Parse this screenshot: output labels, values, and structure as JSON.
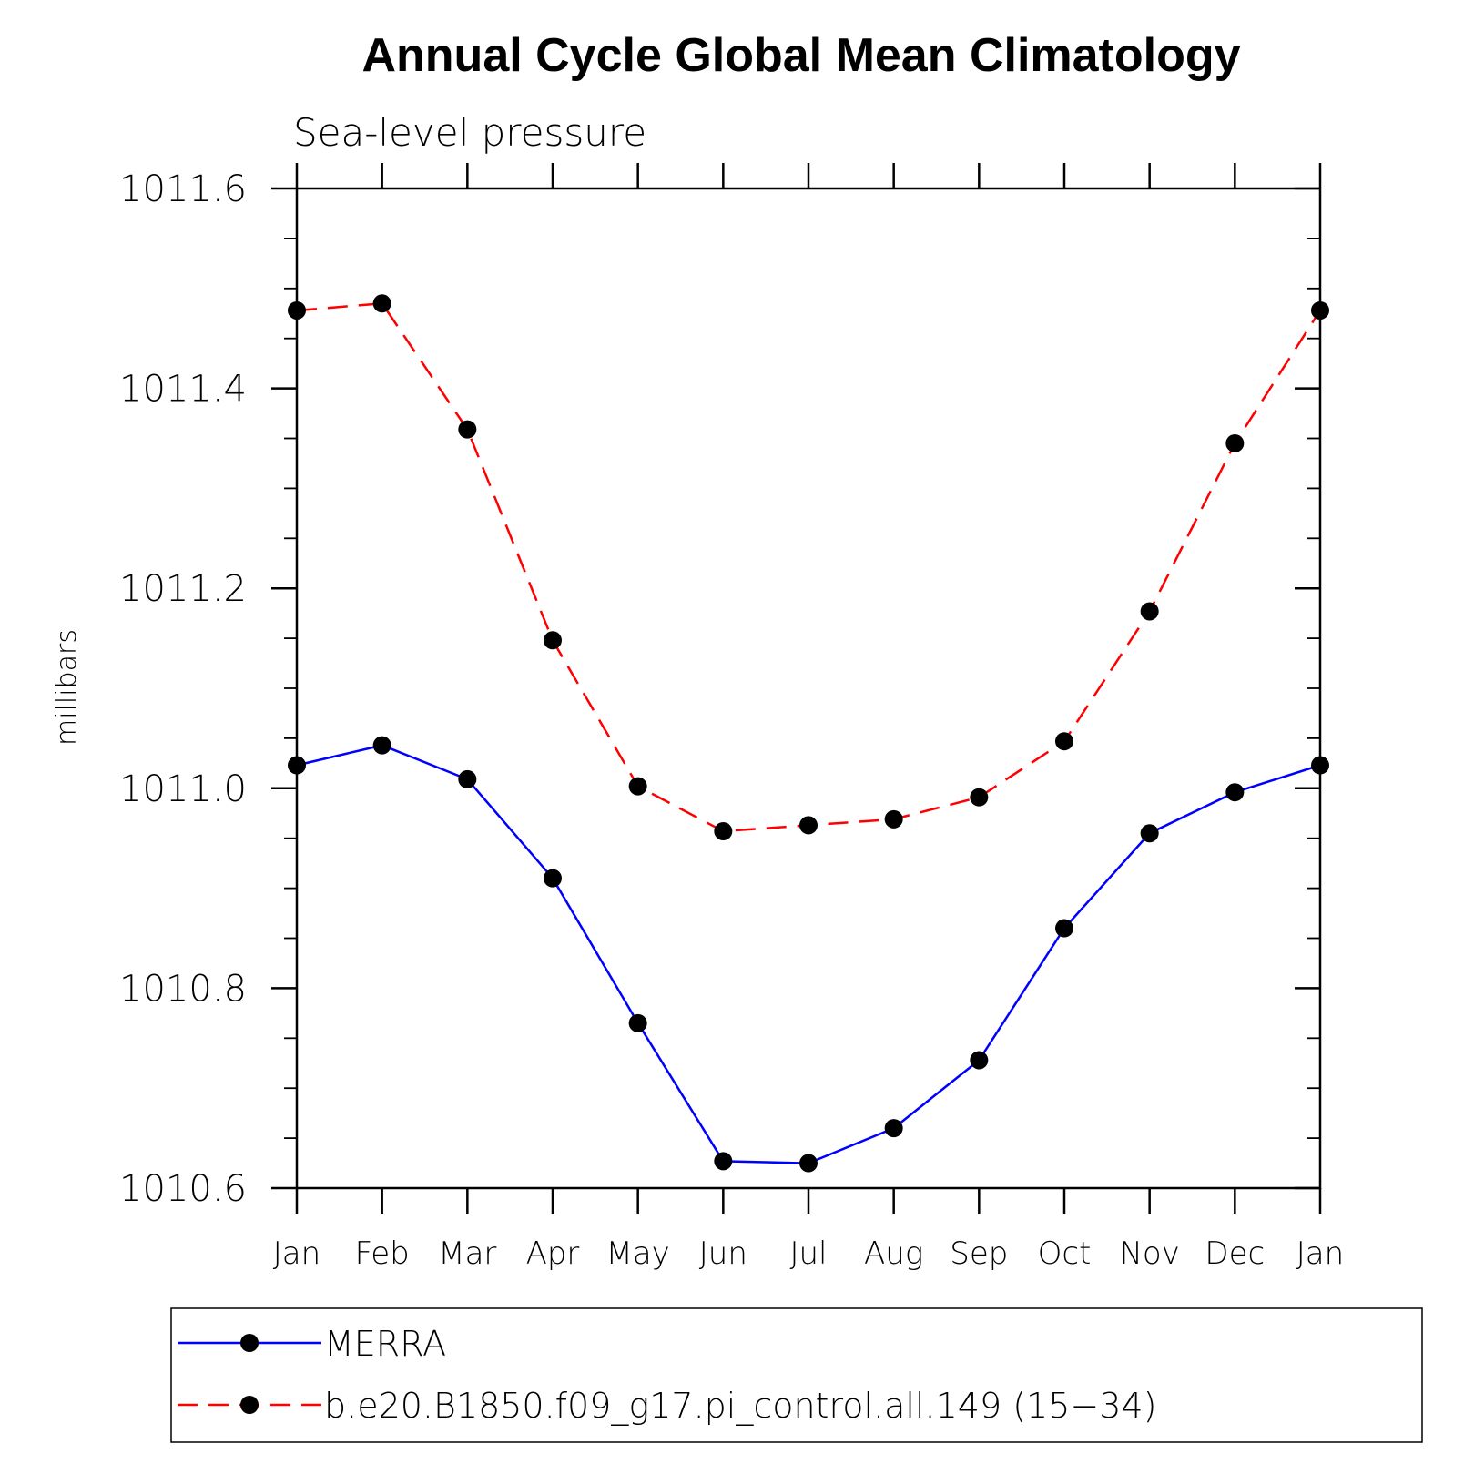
{
  "chart_data": {
    "type": "line",
    "title": "Annual Cycle Global Mean Climatology",
    "subtitle": "Sea-level pressure",
    "xlabel": "",
    "ylabel": "millibars",
    "categories": [
      "Jan",
      "Feb",
      "Mar",
      "Apr",
      "May",
      "Jun",
      "Jul",
      "Aug",
      "Sep",
      "Oct",
      "Nov",
      "Dec",
      "Jan"
    ],
    "ylim": [
      1010.6,
      1011.6
    ],
    "yticks": [
      "1010.6",
      "1010.8",
      "1011.0",
      "1011.2",
      "1011.4",
      "1011.6"
    ],
    "grid": false,
    "legend_position": "bottom",
    "series": [
      {
        "name": "MERRA",
        "color": "#0000ff",
        "style": "solid",
        "values": [
          1011.023,
          1011.043,
          1011.009,
          1010.91,
          1010.765,
          1010.627,
          1010.625,
          1010.66,
          1010.728,
          1010.86,
          1010.955,
          1010.996,
          1011.023
        ]
      },
      {
        "name": "b.e20.B1850.f09_g17.pi_control.all.149 (15−34)",
        "color": "#ff0000",
        "style": "dashed",
        "values": [
          1011.478,
          1011.485,
          1011.359,
          1011.148,
          1011.002,
          1010.957,
          1010.963,
          1010.969,
          1010.991,
          1011.047,
          1011.177,
          1011.345,
          1011.478
        ]
      }
    ]
  }
}
